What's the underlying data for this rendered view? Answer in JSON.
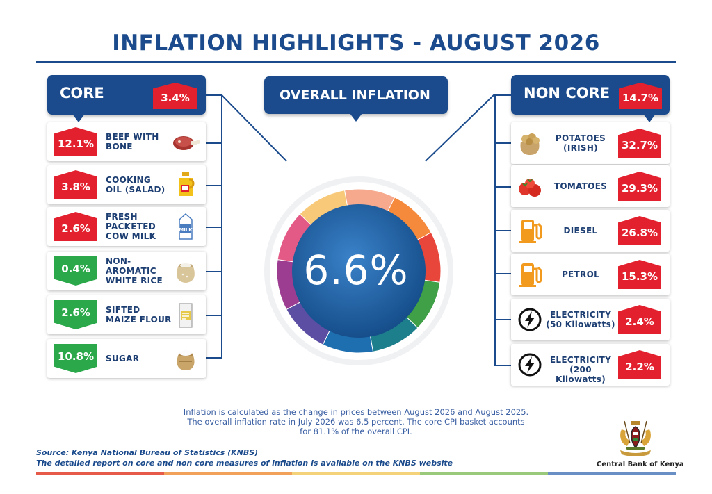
{
  "title": "INFLATION HIGHLIGHTS - AUGUST 2026",
  "core": {
    "label": "CORE",
    "value": "3.4%",
    "items": [
      {
        "label": "BEEF WITH\nBONE",
        "value": "12.1%",
        "trend": "up",
        "icon": "beef-icon"
      },
      {
        "label": "COOKING\nOIL (SALAD)",
        "value": "3.8%",
        "trend": "up",
        "icon": "cooking-oil-icon"
      },
      {
        "label": "FRESH\nPACKETED\nCOW MILK",
        "value": "2.6%",
        "trend": "up",
        "icon": "milk-carton-icon"
      },
      {
        "label": "NON-\nAROMATIC\nWHITE RICE",
        "value": "0.4%",
        "trend": "down",
        "icon": "rice-sack-icon"
      },
      {
        "label": "SIFTED\nMAIZE FLOUR",
        "value": "2.6%",
        "trend": "down",
        "icon": "flour-packet-icon"
      },
      {
        "label": "SUGAR",
        "value": "10.8%",
        "trend": "down",
        "icon": "sugar-sack-icon"
      }
    ]
  },
  "overall": {
    "label": "OVERALL INFLATION",
    "value": "6.6%"
  },
  "non_core": {
    "label": "NON CORE",
    "value": "14.7%",
    "items": [
      {
        "label": "POTATOES\n(IRISH)",
        "value": "32.7%",
        "trend": "up",
        "icon": "potatoes-icon"
      },
      {
        "label": "TOMATOES",
        "value": "29.3%",
        "trend": "up",
        "icon": "tomatoes-icon"
      },
      {
        "label": "DIESEL",
        "value": "26.8%",
        "trend": "up",
        "icon": "fuel-pump-icon"
      },
      {
        "label": "PETROL",
        "value": "15.3%",
        "trend": "up",
        "icon": "fuel-pump-icon"
      },
      {
        "label": "ELECTRICITY\n(50 Kilowatts)",
        "value": "2.4%",
        "trend": "up",
        "icon": "lightning-icon"
      },
      {
        "label": "ELECTRICITY\n(200 Kilowatts)",
        "value": "2.2%",
        "trend": "up",
        "icon": "lightning-icon"
      }
    ]
  },
  "donut_colors": [
    "#f6a98d",
    "#f58a3c",
    "#e8463b",
    "#3fa047",
    "#1d7e8c",
    "#1e6fb0",
    "#5b4ea3",
    "#9d3d91",
    "#e45a86",
    "#f7c979"
  ],
  "note": "Inflation is calculated as the change in prices between August 2026 and August 2025.\nThe overall inflation rate in July 2026 was 6.5 percent. The core CPI basket accounts\nfor 81.1% of the overall CPI.",
  "source_line1": "Source: Kenya National Bureau of Statistics (KNBS)",
  "source_line2": "The detailed report on core and non core measures of inflation is available on the KNBS website",
  "org_name": "Central Bank of Kenya",
  "colors": {
    "primary": "#1b4b8c",
    "increase": "#e3212e",
    "decrease": "#2aa84a"
  }
}
